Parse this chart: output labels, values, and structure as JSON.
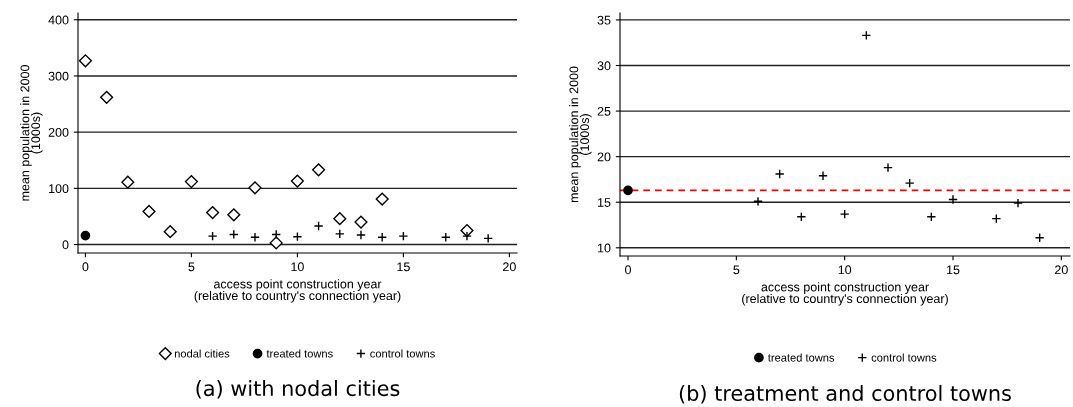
{
  "chart_data": [
    {
      "type": "scatter",
      "title": "(a) with nodal cities",
      "xlabel": "access point construction year\n(relative to country's connection year)",
      "ylabel": "mean population in 2000\n(1000s)",
      "xlim": [
        -0.35,
        20.36
      ],
      "xticks": [
        0,
        5,
        10,
        15,
        20
      ],
      "ylim": [
        -15,
        412
      ],
      "yticks": [
        0,
        100,
        200,
        300,
        400
      ],
      "grid": "y",
      "legend": "bottom",
      "series": [
        {
          "name": "nodal cities",
          "color": "#000000",
          "marker": "diamond",
          "x": [
            0,
            1,
            2,
            3,
            4,
            5,
            6,
            7,
            8,
            9,
            10,
            11,
            12,
            13,
            14,
            18
          ],
          "values": [
            327,
            262,
            111,
            59,
            23,
            112,
            57,
            53,
            101,
            3,
            113,
            133,
            46,
            40,
            81,
            25
          ]
        },
        {
          "name": "treated towns",
          "color": "#000000",
          "marker": "circle",
          "x": [
            0
          ],
          "values": [
            16
          ]
        },
        {
          "name": "control towns",
          "color": "#000000",
          "marker": "cross",
          "x": [
            6,
            7,
            8,
            9,
            10,
            11,
            12,
            13,
            14,
            15,
            17,
            18,
            19
          ],
          "values": [
            15,
            18,
            13,
            18,
            14,
            33,
            19,
            17,
            13,
            15,
            13,
            15,
            11
          ]
        }
      ]
    },
    {
      "type": "scatter",
      "title": "(b) treatment and control towns",
      "xlabel": "access point construction year\n(relative to country's connection year)",
      "ylabel": "mean population in 2000\n(1000s)",
      "xlim": [
        -0.37,
        20.4
      ],
      "xticks": [
        0,
        5,
        10,
        15,
        20
      ],
      "ylim": [
        9.1,
        35.76
      ],
      "yticks": [
        10,
        15,
        20,
        25,
        30,
        35
      ],
      "grid": "y",
      "legend": "bottom",
      "ref_lines": [
        {
          "axis": "y",
          "value": 16.3,
          "color": "#ff0000",
          "line_style": "dashed"
        }
      ],
      "series": [
        {
          "name": "treated towns",
          "color": "#000000",
          "marker": "circle",
          "x": [
            0
          ],
          "values": [
            16.3
          ]
        },
        {
          "name": "control towns",
          "color": "#000000",
          "marker": "cross",
          "x": [
            6,
            7,
            8,
            9,
            10,
            11,
            12,
            13,
            14,
            15,
            17,
            18,
            19
          ],
          "values": [
            15.1,
            18.1,
            13.4,
            17.9,
            13.7,
            33.3,
            18.8,
            17.1,
            13.4,
            15.3,
            13.2,
            14.9,
            11.1
          ]
        }
      ]
    }
  ]
}
